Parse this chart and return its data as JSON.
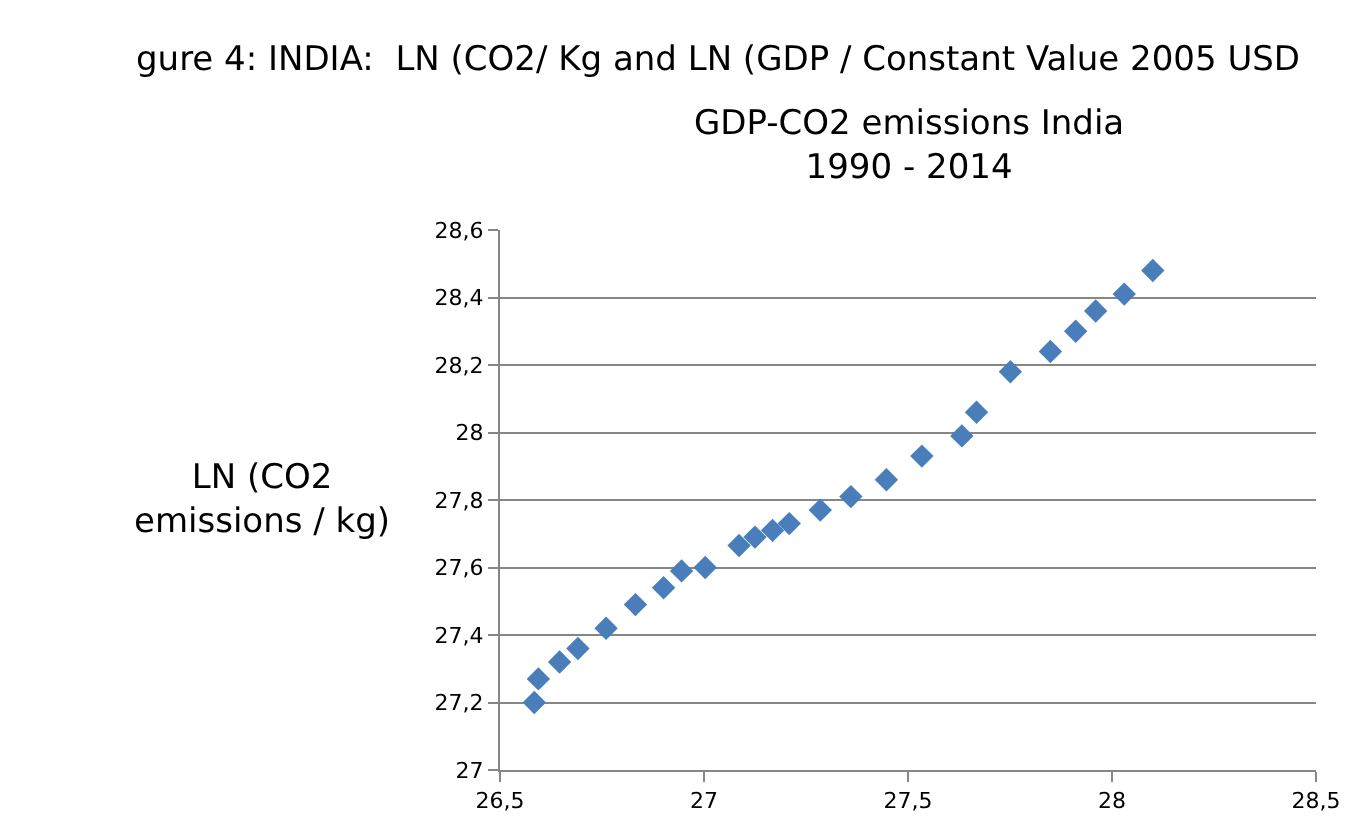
{
  "chart_data": {
    "type": "scatter",
    "title": "GDP-CO2 emissions India",
    "subtitle": "1990 - 2014",
    "ylabel": "LN (CO2 emissions / kg)",
    "annotations": [
      "gure 4: INDIA:  LN (CO2/ Kg and LN (GDP / Constant Value 2005 USD"
    ],
    "x": [
      26.584,
      26.594,
      26.646,
      26.691,
      26.76,
      26.832,
      26.901,
      26.945,
      27.003,
      27.086,
      27.125,
      27.168,
      27.209,
      27.285,
      27.36,
      27.447,
      27.534,
      27.632,
      27.668,
      27.751,
      27.849,
      27.911,
      27.96,
      28.03,
      28.1
    ],
    "series": [
      {
        "color": "#4a7ebb",
        "values": [
          27.2,
          27.27,
          27.32,
          27.36,
          27.42,
          27.49,
          27.54,
          27.59,
          27.6,
          27.665,
          27.69,
          27.71,
          27.73,
          27.77,
          27.81,
          27.86,
          27.93,
          27.99,
          28.06,
          28.18,
          28.24,
          28.3,
          28.36,
          28.41,
          28.48
        ]
      }
    ],
    "xlim": [
      26.5,
      28.5
    ],
    "xticks": [
      {
        "value": 26.5,
        "label": "26,5"
      },
      27,
      {
        "value": 27.5,
        "label": "27,5"
      },
      28,
      {
        "value": 28.5,
        "label": "28,5"
      }
    ],
    "ylim": [
      27,
      28.6
    ],
    "yticks": [
      27,
      {
        "value": 27.2,
        "label": "27,2"
      },
      {
        "value": 27.4,
        "label": "27,4"
      },
      {
        "value": 27.6,
        "label": "27,6"
      },
      {
        "value": 27.8,
        "label": "27,8"
      },
      28,
      {
        "value": 28.2,
        "label": "28,2"
      },
      {
        "value": 28.4,
        "label": "28,4"
      },
      {
        "value": 28.6,
        "label": "28,6"
      }
    ],
    "grid": "y",
    "legend": false,
    "marker": "diamond"
  }
}
